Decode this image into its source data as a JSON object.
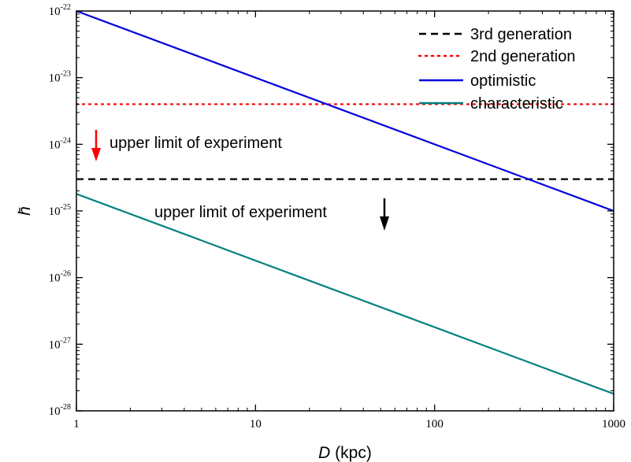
{
  "chart_data": {
    "type": "line",
    "xlabel_var": "D",
    "xlabel_unit": "(kpc)",
    "ylabel": "h̄",
    "x_scale": "log",
    "y_scale": "log",
    "xlim": [
      1,
      1000
    ],
    "ylim": [
      1e-28,
      1e-22
    ],
    "x_ticks": [
      1,
      10,
      100,
      1000
    ],
    "x_tick_labels": [
      "1",
      "10",
      "100",
      "1000"
    ],
    "y_ticks": [
      1e-28,
      1e-27,
      1e-26,
      1e-25,
      1e-24,
      1e-23,
      1e-22
    ],
    "y_tick_base": "10",
    "y_tick_exponents": [
      "-28",
      "-27",
      "-26",
      "-25",
      "-24",
      "-23",
      "-22"
    ],
    "grid": false,
    "legend_position": "top-right",
    "series": [
      {
        "name": "3rd generation",
        "style": "dashed",
        "color": "#000000",
        "x": [
          1,
          1000
        ],
        "y": [
          3e-25,
          3e-25
        ]
      },
      {
        "name": "2nd generation",
        "style": "dotted",
        "color": "#ff0000",
        "x": [
          1,
          1000
        ],
        "y": [
          4e-24,
          4e-24
        ]
      },
      {
        "name": "optimistic",
        "style": "solid",
        "color": "#0000dd",
        "x": [
          1,
          1000
        ],
        "y": [
          1e-22,
          1e-25
        ]
      },
      {
        "name": "characteristic",
        "style": "solid",
        "color": "#008080",
        "x": [
          1,
          1000
        ],
        "y": [
          1.8e-25,
          1.8e-28
        ]
      }
    ],
    "annotations": [
      {
        "text": "upper limit of experiment",
        "arrow_color": "#ff0000"
      },
      {
        "text": "upper limit of experiment",
        "arrow_color": "#000000"
      }
    ]
  }
}
